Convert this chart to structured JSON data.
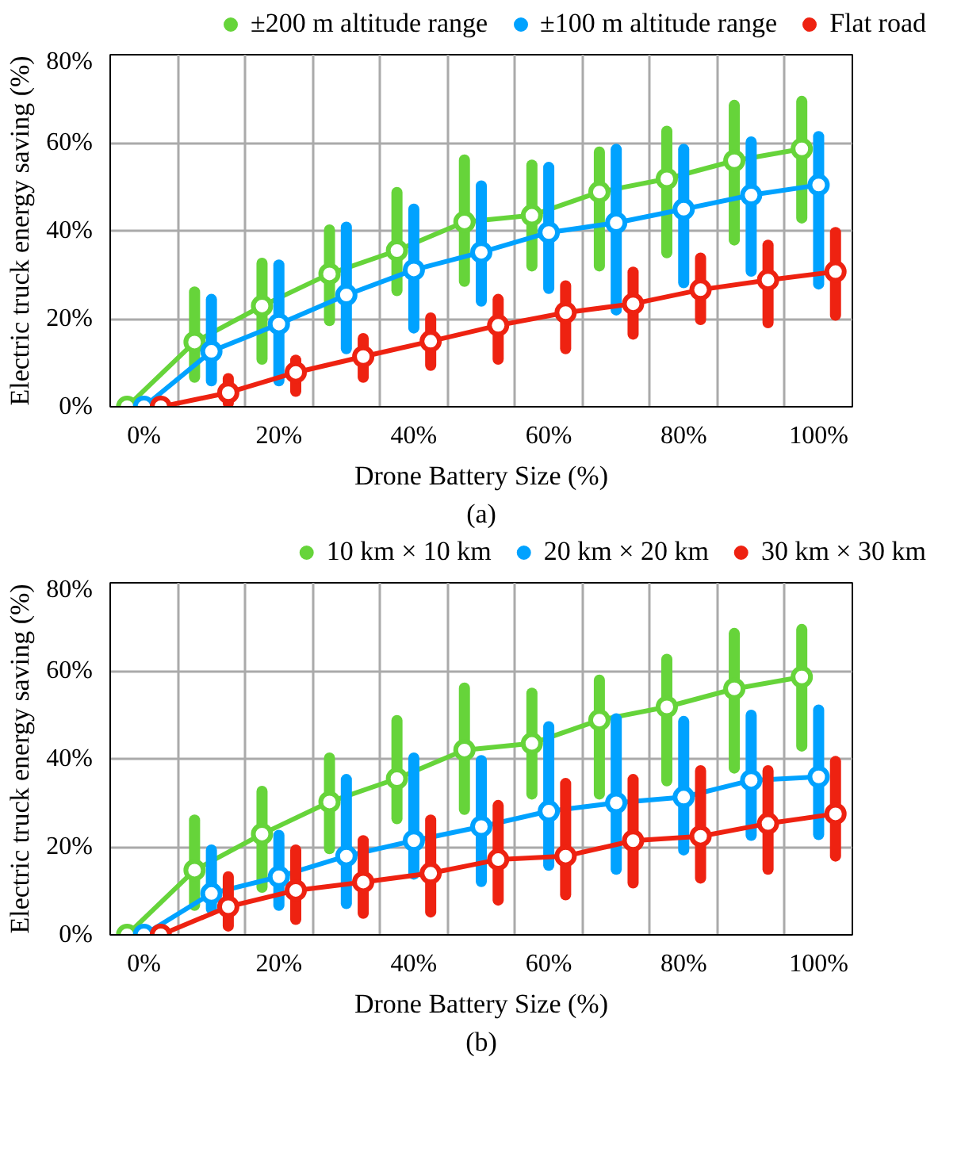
{
  "chart_data": [
    {
      "type": "line",
      "xlabel": "Drone Battery Size (%)",
      "ylabel": "Electric truck energy saving (%)",
      "annotations": [
        "(a)"
      ],
      "categories": [
        "0%",
        null,
        "20%",
        null,
        "40%",
        null,
        "60%",
        null,
        "80%",
        null,
        "100%"
      ],
      "ylim": [
        0,
        80
      ],
      "yticks": [
        {
          "value": 0,
          "label": "0%"
        },
        {
          "value": 20,
          "label": "20%"
        },
        {
          "value": 40,
          "label": "40%"
        },
        {
          "value": 60,
          "label": "60%"
        },
        {
          "value": 80,
          "label": "80%"
        }
      ],
      "grid": true,
      "legend": "top",
      "marker": "circle",
      "series": [
        {
          "name": "±200 m altitude range",
          "color": "#66d43a",
          "values": [
            0,
            14.7,
            22.9,
            30.2,
            35.5,
            42,
            43.5,
            48.8,
            51.8,
            55.9,
            58.6
          ],
          "errors": [
            null,
            [
              6.7,
              26.1
            ],
            [
              10.8,
              32.6
            ],
            [
              19.6,
              40.2
            ],
            [
              26.4,
              48.7
            ],
            [
              28.5,
              56.1
            ],
            [
              32,
              54.9
            ],
            [
              32,
              57.9
            ],
            [
              35,
              62.6
            ],
            [
              37.9,
              68.5
            ],
            [
              42.9,
              69.4
            ]
          ]
        },
        {
          "name": "±100 m altitude range",
          "color": "#00a2ff",
          "values": [
            0,
            12.6,
            18.8,
            25.4,
            31.1,
            35.1,
            39.6,
            41.8,
            44.9,
            48.1,
            50.4
          ],
          "errors": [
            null,
            [
              5.9,
              24.4
            ],
            [
              5.9,
              32.2
            ],
            [
              13.2,
              40.8
            ],
            [
              17.9,
              44.9
            ],
            [
              24,
              50.2
            ],
            [
              26.9,
              54.4
            ],
            [
              22,
              58.5
            ],
            [
              28.2,
              58.5
            ],
            [
              30.8,
              60.2
            ],
            [
              27.9,
              61.4
            ]
          ]
        },
        {
          "name": "Flat road",
          "color": "#ee2211",
          "values": [
            0,
            3.2,
            7.8,
            11.4,
            14.9,
            18.5,
            21.4,
            23.4,
            26.6,
            28.8,
            30.7
          ],
          "errors": [
            null,
            [
              0.8,
              6.4
            ],
            [
              3.5,
              10.6
            ],
            [
              6.7,
              15.5
            ],
            [
              9.4,
              20.2
            ],
            [
              10.8,
              24.4
            ],
            [
              13.2,
              27.5
            ],
            [
              16.5,
              30.6
            ],
            [
              19.8,
              33.8
            ],
            [
              19.1,
              36.7
            ],
            [
              20.8,
              39.6
            ]
          ]
        }
      ]
    },
    {
      "type": "line",
      "xlabel": "Drone Battery Size (%)",
      "ylabel": "Electric truck energy saving (%)",
      "annotations": [
        "(b)"
      ],
      "categories": [
        "0%",
        null,
        "20%",
        null,
        "40%",
        null,
        "60%",
        null,
        "80%",
        null,
        "100%"
      ],
      "ylim": [
        0,
        80
      ],
      "yticks": [
        {
          "value": 0,
          "label": "0%"
        },
        {
          "value": 20,
          "label": "20%"
        },
        {
          "value": 40,
          "label": "40%"
        },
        {
          "value": 60,
          "label": "60%"
        },
        {
          "value": 80,
          "label": "80%"
        }
      ],
      "grid": true,
      "legend": "top",
      "marker": "circle",
      "series": [
        {
          "name": "10 km × 10 km",
          "color": "#66d43a",
          "values": [
            0,
            14.7,
            22.9,
            30.2,
            35.5,
            42,
            43.5,
            48.8,
            51.8,
            55.9,
            58.6
          ],
          "errors": [
            null,
            [
              6.7,
              26.1
            ],
            [
              10.8,
              32.6
            ],
            [
              19.6,
              40.2
            ],
            [
              26.4,
              48.7
            ],
            [
              28.5,
              56.1
            ],
            [
              32,
              54.9
            ],
            [
              32,
              57.9
            ],
            [
              35,
              62.6
            ],
            [
              37.9,
              68.5
            ],
            [
              42.9,
              69.4
            ]
          ]
        },
        {
          "name": "20 km × 20 km",
          "color": "#00a2ff",
          "values": [
            0,
            9.4,
            13.2,
            17.9,
            21.4,
            24.6,
            28.1,
            30,
            31.3,
            35.1,
            35.9
          ],
          "errors": [
            null,
            [
              5.9,
              19.3
            ],
            [
              6.7,
              22.6
            ],
            [
              7.1,
              35.3
            ],
            [
              13.8,
              40.2
            ],
            [
              12.1,
              39.6
            ],
            [
              15.8,
              47.3
            ],
            [
              14.9,
              49.1
            ],
            [
              19.3,
              48.5
            ],
            [
              22.6,
              49.9
            ],
            [
              22.8,
              51.1
            ]
          ]
        },
        {
          "name": "30 km × 30 km",
          "color": "#ee2211",
          "values": [
            0,
            6.4,
            10.1,
            12,
            14,
            17.1,
            17.9,
            21.4,
            22.4,
            25.3,
            27.5
          ],
          "errors": [
            null,
            [
              2,
              13.2
            ],
            [
              3.5,
              19.3
            ],
            [
              4.9,
              21.4
            ],
            [
              5.2,
              26.1
            ],
            [
              7.9,
              29.4
            ],
            [
              9.1,
              34.4
            ],
            [
              11.8,
              35.3
            ],
            [
              12.9,
              37.3
            ],
            [
              14.9,
              37.3
            ],
            [
              17.9,
              39.4
            ]
          ]
        }
      ]
    }
  ]
}
